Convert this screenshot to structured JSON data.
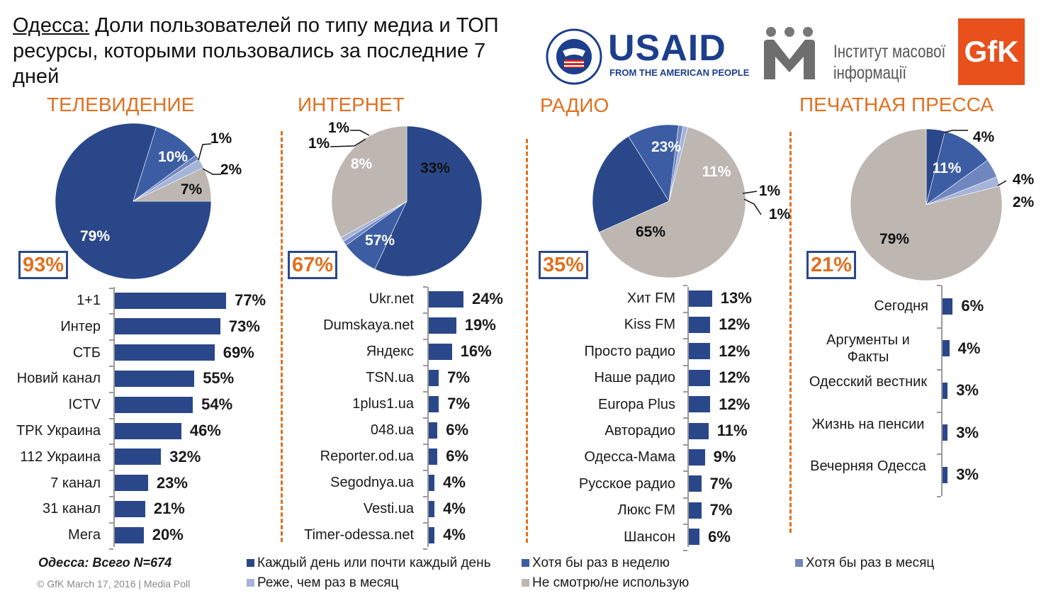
{
  "title": {
    "city": "Одесса:",
    "text": " Доли пользователей по типу медиа и ТОП ресурсы, которыми пользовались за последние 7 дней"
  },
  "logos": {
    "usaid_main": "USAID",
    "usaid_sub": "FROM THE AMERICAN PEOPLE",
    "imi_line1": "Інститут масової",
    "imi_line2": "інформації",
    "gfk": "GfK"
  },
  "colors": {
    "daily": "#2a4789",
    "weekly": "#3c5da3",
    "monthly": "#6f86bf",
    "rarely": "#a6b4da",
    "never": "#bdb6b1",
    "accent": "#e07020",
    "bar": "#2a4789"
  },
  "legend": [
    {
      "label": "Каждый день или почти каждый день",
      "color": "#2a4789"
    },
    {
      "label": "Хотя бы раз в неделю",
      "color": "#3c5da3"
    },
    {
      "label": "Хотя бы раз в месяц",
      "color": "#6f86bf"
    },
    {
      "label": "Реже, чем раз в месяц",
      "color": "#a6b4da"
    },
    {
      "label": "Не смотрю/не использую",
      "color": "#bdb6b1"
    }
  ],
  "footer": {
    "base": "Одесса: Всего N=674",
    "copyright": "© GfK March 17, 2016 | Media Poll"
  },
  "chart_data": [
    {
      "type": "pie",
      "title": "ТЕЛЕВИДЕНИЕ",
      "total": "93%",
      "slices": [
        {
          "name": "Каждый день или почти каждый день",
          "value": 79,
          "label": "79%"
        },
        {
          "name": "Хотя бы раз в неделю",
          "value": 10,
          "label": "10%"
        },
        {
          "name": "Хотя бы раз в месяц",
          "value": 1,
          "label": "1%"
        },
        {
          "name": "Реже, чем раз в месяц",
          "value": 2,
          "label": "2%"
        },
        {
          "name": "Не смотрю/не использую",
          "value": 7,
          "label": "7%"
        }
      ]
    },
    {
      "type": "pie",
      "title": "ИНТЕРНЕТ",
      "total": "67%",
      "slices": [
        {
          "name": "Каждый день или почти каждый день",
          "value": 57,
          "label": "57%"
        },
        {
          "name": "Хотя бы раз в неделю",
          "value": 8,
          "label": "8%"
        },
        {
          "name": "Хотя бы раз в месяц",
          "value": 1,
          "label": "1%"
        },
        {
          "name": "Реже, чем раз в месяц",
          "value": 1,
          "label": "1%"
        },
        {
          "name": "Не смотрю/не использую",
          "value": 33,
          "label": "33%"
        }
      ]
    },
    {
      "type": "pie",
      "title": "РАДИО",
      "total": "35%",
      "slices": [
        {
          "name": "Каждый день или почти каждый день",
          "value": 23,
          "label": "23%"
        },
        {
          "name": "Хотя бы раз в неделю",
          "value": 11,
          "label": "11%"
        },
        {
          "name": "Хотя бы раз в месяц",
          "value": 1,
          "label": "1%"
        },
        {
          "name": "Реже, чем раз в месяц",
          "value": 1,
          "label": "1%"
        },
        {
          "name": "Не смотрю/не использую",
          "value": 65,
          "label": "65%"
        }
      ]
    },
    {
      "type": "pie",
      "title": "ПЕЧАТНАЯ ПРЕССА",
      "total": "21%",
      "slices": [
        {
          "name": "Каждый день или почти каждый день",
          "value": 4,
          "label": "4%"
        },
        {
          "name": "Хотя бы раз в неделю",
          "value": 11,
          "label": "11%"
        },
        {
          "name": "Хотя бы раз в месяц",
          "value": 4,
          "label": "4%"
        },
        {
          "name": "Реже, чем раз в месяц",
          "value": 2,
          "label": "2%"
        },
        {
          "name": "Не смотрю/не использую",
          "value": 79,
          "label": "79%"
        }
      ]
    },
    {
      "type": "bar",
      "orientation": "horizontal",
      "section": "ТЕЛЕВИДЕНИЕ",
      "categories": [
        "1+1",
        "Интер",
        "СТБ",
        "Новий канал",
        "ICTV",
        "ТРК Украина",
        "112 Украина",
        "7 канал",
        "31 канал",
        "Мега"
      ],
      "values": [
        77,
        73,
        69,
        55,
        54,
        46,
        32,
        23,
        21,
        20
      ],
      "labels": [
        "77%",
        "73%",
        "69%",
        "55%",
        "54%",
        "46%",
        "32%",
        "23%",
        "21%",
        "20%"
      ]
    },
    {
      "type": "bar",
      "orientation": "horizontal",
      "section": "ИНТЕРНЕТ",
      "categories": [
        "Ukr.net",
        "Dumskaya.net",
        "Яндекс",
        "TSN.ua",
        "1plus1.ua",
        "048.ua",
        "Reporter.od.ua",
        "Segodnya.ua",
        "Vesti.ua",
        "Timer-odessa.net"
      ],
      "values": [
        24,
        19,
        16,
        7,
        7,
        6,
        6,
        4,
        4,
        4
      ],
      "labels": [
        "24%",
        "19%",
        "16%",
        "7%",
        "7%",
        "6%",
        "6%",
        "4%",
        "4%",
        "4%"
      ]
    },
    {
      "type": "bar",
      "orientation": "horizontal",
      "section": "РАДИО",
      "categories": [
        "Хит FM",
        "Kiss FM",
        "Просто радио",
        "Наше радио",
        "Europa Plus",
        "Авторадио",
        "Одесса-Мама",
        "Русское радио",
        "Люкс FM",
        "Шансон"
      ],
      "values": [
        13,
        12,
        12,
        12,
        12,
        11,
        9,
        7,
        7,
        6
      ],
      "labels": [
        "13%",
        "12%",
        "12%",
        "12%",
        "12%",
        "11%",
        "9%",
        "7%",
        "7%",
        "6%"
      ]
    },
    {
      "type": "bar",
      "orientation": "horizontal",
      "section": "ПЕЧАТНАЯ ПРЕССА",
      "categories": [
        "Сегодня",
        "Аргументы и Факты",
        "Одесский вестник",
        "Жизнь на пенсии",
        "Вечерняя Одесса"
      ],
      "values": [
        6,
        4,
        3,
        3,
        3
      ],
      "labels": [
        "6%",
        "4%",
        "3%",
        "3%",
        "3%"
      ]
    }
  ]
}
